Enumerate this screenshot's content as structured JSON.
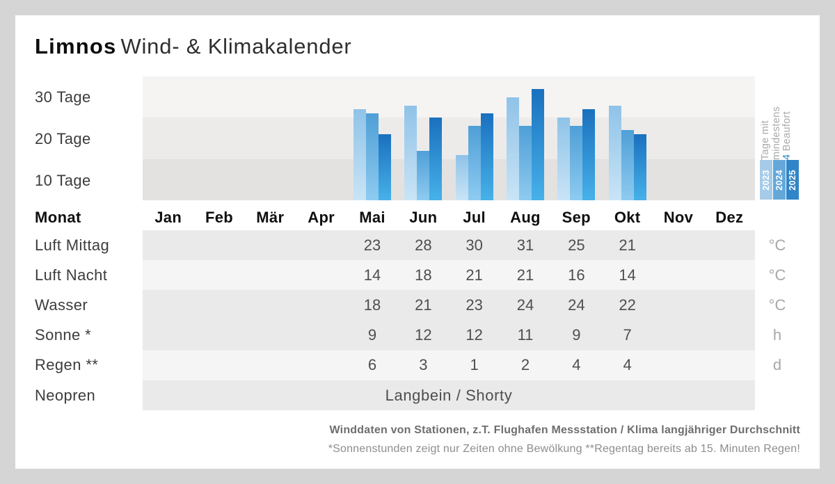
{
  "page": {
    "background": "#d5d5d5",
    "card_background": "#ffffff"
  },
  "header": {
    "brand": "Limnos",
    "title": "Wind- & Klimakalender"
  },
  "chart_data": {
    "type": "bar",
    "title": "Tage mit mindestens 4 Beaufort",
    "ylabel_ticks": [
      "30 Tage",
      "20 Tage",
      "10 Tage"
    ],
    "ylim": [
      0,
      30
    ],
    "grid": "banded",
    "legend_position": "right-vertical",
    "categories": [
      "Mai",
      "Jun",
      "Jul",
      "Aug",
      "Sep",
      "Okt"
    ],
    "series": [
      {
        "name": "2023",
        "values": [
          22,
          23,
          11,
          25,
          20,
          23
        ],
        "color_top": "#8fc3e8",
        "color_bottom": "#c9e4f6",
        "swatch": "#a6cbe9"
      },
      {
        "name": "2024",
        "values": [
          21,
          12,
          18,
          18,
          18,
          17
        ],
        "color_top": "#4f9fd7",
        "color_bottom": "#8ecbf0",
        "swatch": "#64a8da"
      },
      {
        "name": "2025",
        "values": [
          16,
          20,
          21,
          27,
          22,
          16
        ],
        "color_top": "#1a70be",
        "color_bottom": "#47b1e9",
        "swatch": "#2f85c8"
      }
    ],
    "legend_lines": [
      "Tage mit",
      "mindestens"
    ],
    "legend_highlight_num": "4",
    "legend_highlight_word": "Beaufort",
    "highlight_color": "#2e86c9"
  },
  "months": {
    "label": "Monat",
    "items": [
      "Jan",
      "Feb",
      "Mär",
      "Apr",
      "Mai",
      "Jun",
      "Jul",
      "Aug",
      "Sep",
      "Okt",
      "Nov",
      "Dez"
    ]
  },
  "table": {
    "rows": [
      {
        "label": "Luft Mittag",
        "values": [
          "23",
          "28",
          "30",
          "31",
          "25",
          "21"
        ],
        "unit": "°C",
        "shade": "dark"
      },
      {
        "label": "Luft Nacht",
        "values": [
          "14",
          "18",
          "21",
          "21",
          "16",
          "14"
        ],
        "unit": "°C",
        "shade": "light"
      },
      {
        "label": "Wasser",
        "values": [
          "18",
          "21",
          "23",
          "24",
          "24",
          "22"
        ],
        "unit": "°C",
        "shade": "dark"
      },
      {
        "label": "Sonne *",
        "values": [
          "9",
          "12",
          "12",
          "11",
          "9",
          "7"
        ],
        "unit": "h",
        "shade": "dark"
      },
      {
        "label": "Regen **",
        "values": [
          "6",
          "3",
          "1",
          "2",
          "4",
          "4"
        ],
        "unit": "d",
        "shade": "light"
      },
      {
        "label": "Neopren",
        "span_text": "Langbein / Shorty",
        "unit": "",
        "shade": "dark"
      }
    ]
  },
  "footer": {
    "line1": "Winddaten von Stationen, z.T. Flughafen Messstation / Klima langjähriger Durchschnitt",
    "line2": "*Sonnenstunden zeigt nur Zeiten ohne Bewölkung  **Regentag bereits ab 15. Minuten Regen!"
  }
}
